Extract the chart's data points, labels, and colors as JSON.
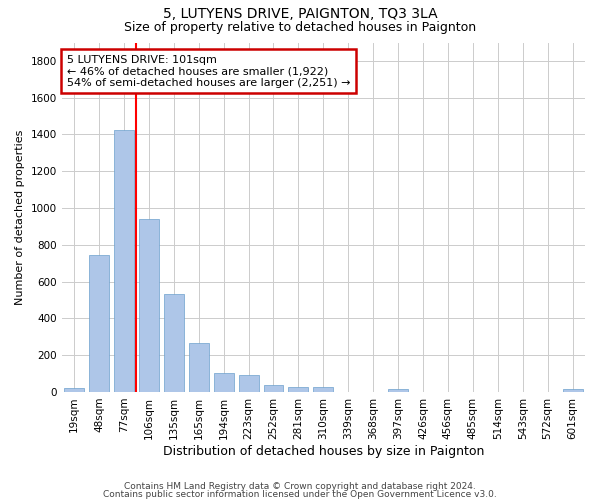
{
  "title": "5, LUTYENS DRIVE, PAIGNTON, TQ3 3LA",
  "subtitle": "Size of property relative to detached houses in Paignton",
  "xlabel": "Distribution of detached houses by size in Paignton",
  "ylabel": "Number of detached properties",
  "categories": [
    "19sqm",
    "48sqm",
    "77sqm",
    "106sqm",
    "135sqm",
    "165sqm",
    "194sqm",
    "223sqm",
    "252sqm",
    "281sqm",
    "310sqm",
    "339sqm",
    "368sqm",
    "397sqm",
    "426sqm",
    "456sqm",
    "485sqm",
    "514sqm",
    "543sqm",
    "572sqm",
    "601sqm"
  ],
  "values": [
    22,
    745,
    1422,
    938,
    532,
    265,
    103,
    92,
    38,
    28,
    28,
    0,
    0,
    15,
    0,
    0,
    0,
    0,
    0,
    0,
    15
  ],
  "bar_color": "#aec6e8",
  "bar_edge_color": "#6ca0cd",
  "grid_color": "#cccccc",
  "bg_color": "#ffffff",
  "property_line_x": 2.5,
  "annotation_line1": "5 LUTYENS DRIVE: 101sqm",
  "annotation_line2": "← 46% of detached houses are smaller (1,922)",
  "annotation_line3": "54% of semi-detached houses are larger (2,251) →",
  "annotation_box_color": "#cc0000",
  "footnote_line1": "Contains HM Land Registry data © Crown copyright and database right 2024.",
  "footnote_line2": "Contains public sector information licensed under the Open Government Licence v3.0.",
  "ylim": [
    0,
    1900
  ],
  "yticks": [
    0,
    200,
    400,
    600,
    800,
    1000,
    1200,
    1400,
    1600,
    1800
  ],
  "title_fontsize": 10,
  "subtitle_fontsize": 9,
  "ylabel_fontsize": 8,
  "xlabel_fontsize": 9,
  "tick_fontsize": 7.5,
  "annotation_fontsize": 8,
  "footnote_fontsize": 6.5
}
